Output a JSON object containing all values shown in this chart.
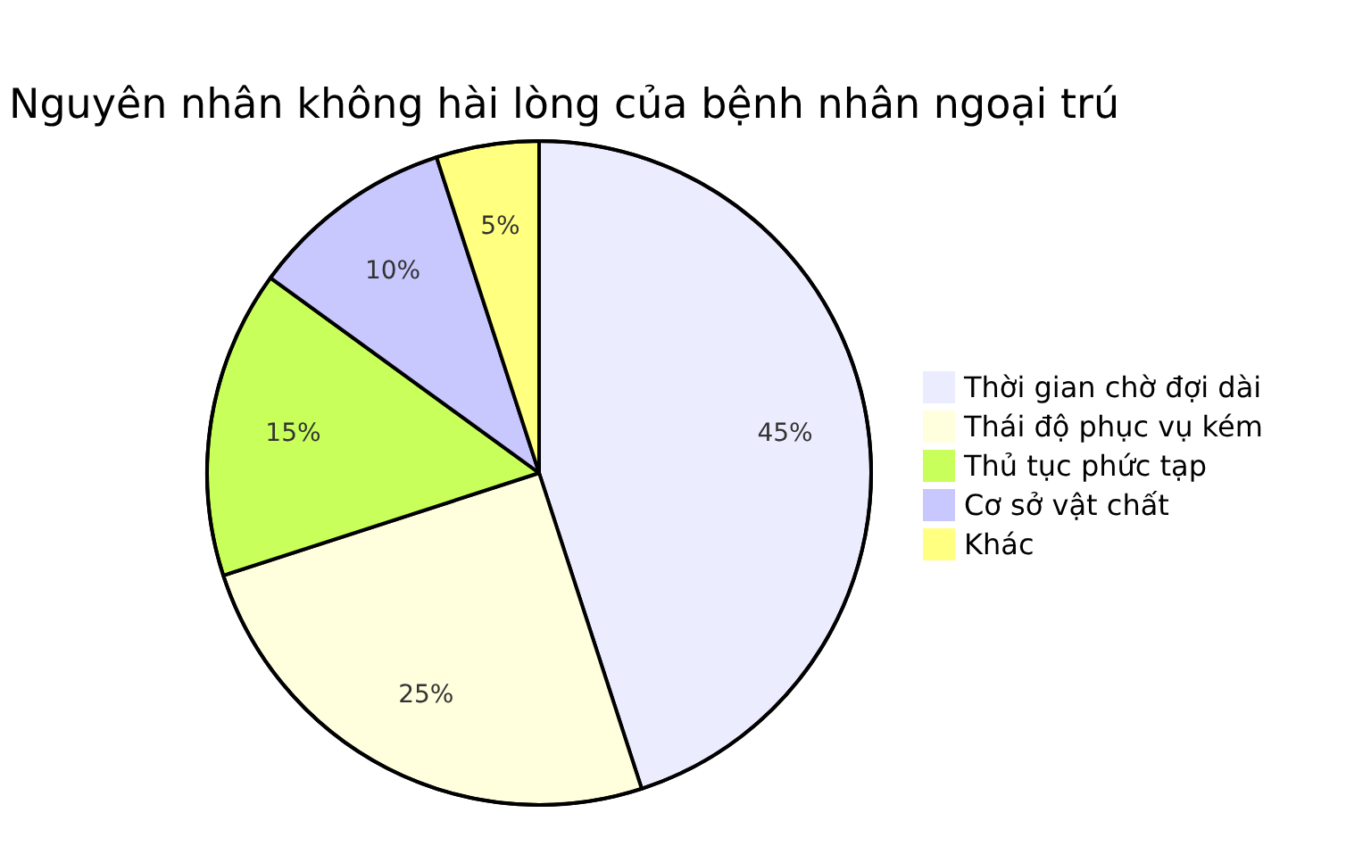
{
  "chart_data": {
    "type": "pie",
    "title": "Nguyên nhân không hài lòng của bệnh nhân ngoại trú",
    "categories": [
      "Thời gian chờ đợi dài",
      "Thái độ phục vụ kém",
      "Thủ tục phức tạp",
      "Cơ sở vật chất",
      "Khác"
    ],
    "values": [
      45,
      25,
      15,
      10,
      5
    ],
    "value_labels": [
      "45%",
      "25%",
      "15%",
      "10%",
      "5%"
    ],
    "colors": [
      "#ececff",
      "#ffffde",
      "#c8ff5a",
      "#c8c8ff",
      "#ffff80"
    ],
    "legend": "right"
  }
}
